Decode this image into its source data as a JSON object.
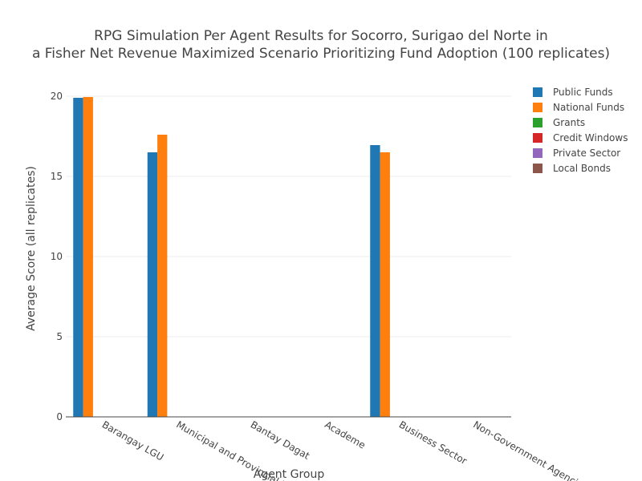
{
  "chart_data": {
    "type": "bar",
    "title": [
      "RPG Simulation Per Agent Results for Socorro, Surigao del Norte in",
      "a Fisher Net Revenue Maximized Scenario Prioritizing Fund Adoption (100 replicates)"
    ],
    "xlabel": "Agent Group",
    "ylabel": "Average Score (all replicates)",
    "ylim": [
      0,
      20
    ],
    "yticks": [
      0,
      5,
      10,
      15,
      20
    ],
    "grid": true,
    "legend_position": "top-right",
    "categories": [
      "Barangay LGU",
      "Municipal and Provincial LGU",
      "Bantay Dagat",
      "Academe",
      "Business Sector",
      "Non-Government Agencies"
    ],
    "series": [
      {
        "name": "Public Funds",
        "color": "#1f77b4",
        "values": [
          19.9,
          16.5,
          0,
          0,
          16.95,
          0
        ]
      },
      {
        "name": "National Funds",
        "color": "#ff7f0e",
        "values": [
          19.95,
          17.6,
          0,
          0,
          16.5,
          0
        ]
      },
      {
        "name": "Grants",
        "color": "#2ca02c",
        "values": [
          0,
          0,
          0,
          0,
          0,
          0
        ]
      },
      {
        "name": "Credit Windows",
        "color": "#d62728",
        "values": [
          0,
          0,
          0,
          0,
          0,
          0
        ]
      },
      {
        "name": "Private Sector",
        "color": "#9467bd",
        "values": [
          0,
          0,
          0,
          0,
          0,
          0
        ]
      },
      {
        "name": "Local Bonds",
        "color": "#8c564b",
        "values": [
          0,
          0,
          0,
          0,
          0,
          0
        ]
      }
    ]
  }
}
